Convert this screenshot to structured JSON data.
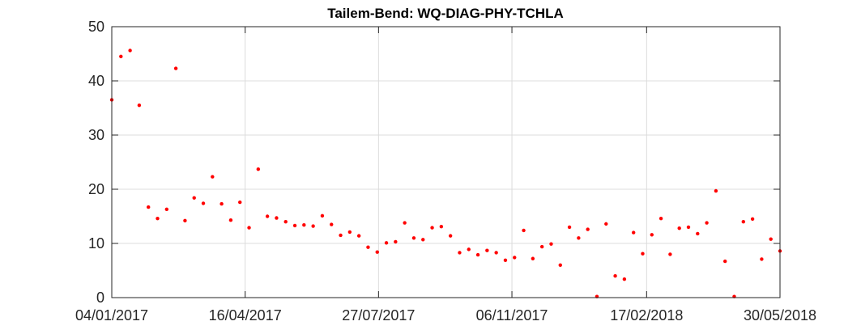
{
  "chart_data": {
    "type": "scatter",
    "title": "Tailem-Bend: WQ-DIAG-PHY-TCHLA",
    "xlabel": "",
    "ylabel": "",
    "x_axis_type": "date",
    "xlim": [
      "2017-01-04",
      "2018-05-30"
    ],
    "ylim": [
      0,
      50
    ],
    "xticks": [
      "2017-01-04",
      "2017-04-16",
      "2017-07-27",
      "2017-11-06",
      "2018-02-17",
      "2018-05-30"
    ],
    "xtick_labels": [
      "04/01/2017",
      "16/04/2017",
      "27/07/2017",
      "06/11/2017",
      "17/02/2018",
      "30/05/2018"
    ],
    "yticks": [
      0,
      10,
      20,
      30,
      40,
      50
    ],
    "ytick_labels": [
      "0",
      "10",
      "20",
      "30",
      "40",
      "50"
    ],
    "grid": true,
    "marker_color": "#ff0000",
    "series": [
      {
        "x": [
          "2017-01-04",
          "2017-01-11",
          "2017-01-18",
          "2017-01-25",
          "2017-02-01",
          "2017-02-08",
          "2017-02-15",
          "2017-02-22",
          "2017-03-01",
          "2017-03-08",
          "2017-03-15",
          "2017-03-22",
          "2017-03-29",
          "2017-04-05",
          "2017-04-12",
          "2017-04-19",
          "2017-04-26",
          "2017-05-03",
          "2017-05-10",
          "2017-05-17",
          "2017-05-24",
          "2017-05-31",
          "2017-06-07",
          "2017-06-14",
          "2017-06-21",
          "2017-06-28",
          "2017-07-05",
          "2017-07-12",
          "2017-07-19",
          "2017-07-26",
          "2017-08-02",
          "2017-08-09",
          "2017-08-16",
          "2017-08-23",
          "2017-08-30",
          "2017-09-06",
          "2017-09-13",
          "2017-09-20",
          "2017-09-27",
          "2017-10-04",
          "2017-10-11",
          "2017-10-18",
          "2017-10-25",
          "2017-11-01",
          "2017-11-08",
          "2017-11-15",
          "2017-11-22",
          "2017-11-29",
          "2017-12-06",
          "2017-12-13",
          "2017-12-20",
          "2017-12-27",
          "2018-01-03",
          "2018-01-10",
          "2018-01-17",
          "2018-01-24",
          "2018-01-31",
          "2018-02-07",
          "2018-02-14",
          "2018-02-21",
          "2018-02-28",
          "2018-03-07",
          "2018-03-14",
          "2018-03-21",
          "2018-03-28",
          "2018-04-04",
          "2018-04-11",
          "2018-04-18",
          "2018-04-25",
          "2018-05-02",
          "2018-05-09",
          "2018-05-16",
          "2018-05-23",
          "2018-05-30"
        ],
        "y": [
          36.5,
          44.5,
          45.6,
          35.5,
          16.7,
          14.6,
          16.3,
          42.3,
          14.2,
          18.4,
          17.4,
          22.3,
          17.3,
          14.3,
          17.6,
          12.9,
          23.7,
          15.0,
          14.7,
          14.0,
          13.3,
          13.4,
          13.2,
          15.1,
          13.5,
          11.5,
          12.1,
          11.4,
          9.3,
          8.4,
          10.1,
          10.3,
          13.8,
          11.0,
          10.7,
          12.9,
          13.1,
          11.4,
          8.3,
          8.9,
          7.9,
          8.7,
          8.3,
          6.9,
          7.4,
          12.4,
          7.2,
          9.4,
          9.9,
          6.0,
          13.0,
          11.0,
          12.6,
          0.2,
          13.6,
          4.0,
          3.4,
          12.0,
          8.1,
          11.6,
          14.6,
          8.0,
          12.8,
          13.0,
          11.8,
          13.8,
          19.7,
          6.7,
          0.2,
          14.0,
          14.5,
          7.1,
          10.8,
          8.6
        ]
      }
    ]
  }
}
